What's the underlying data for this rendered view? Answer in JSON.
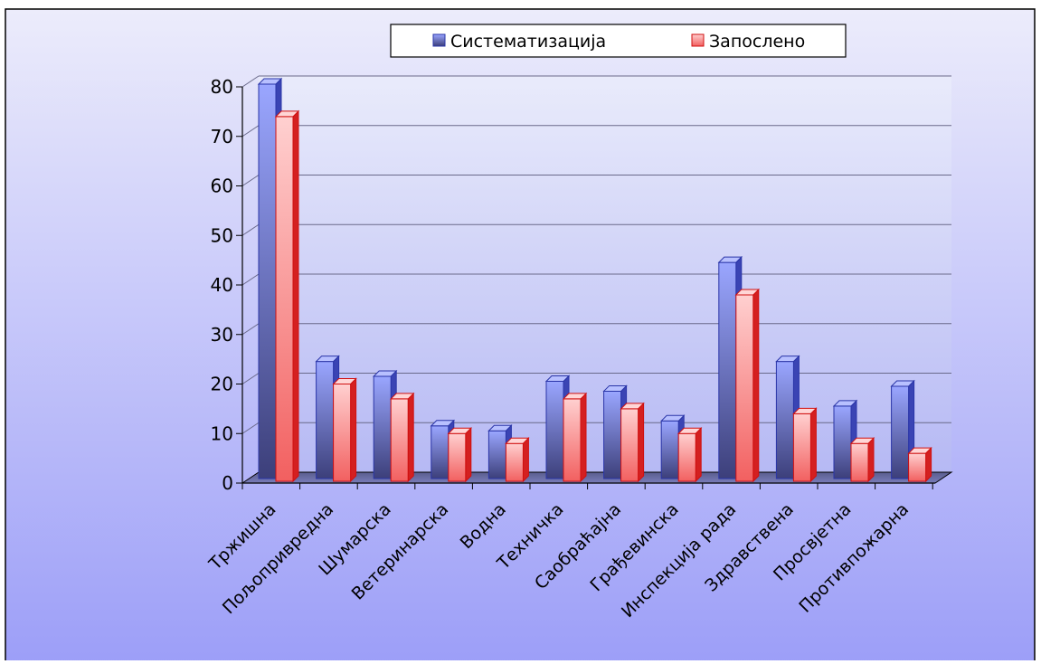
{
  "chart_data": {
    "type": "bar",
    "categories": [
      "Тржишна",
      "Пољопривредна",
      "Шумарска",
      "Ветеринарска",
      "Водна",
      "Техничка",
      "Саобраћајна",
      "Грађевинска",
      "Инспекција рада",
      "Здравствена",
      "Просвјетна",
      "Противпожарна"
    ],
    "series": [
      {
        "name": "Систематизација",
        "values": [
          80,
          24,
          21,
          11,
          10,
          20,
          18,
          12,
          44,
          24,
          15,
          19
        ]
      },
      {
        "name": "Запослено",
        "values": [
          74,
          20,
          17,
          10,
          8,
          17,
          15,
          10,
          38,
          14,
          8,
          6
        ]
      }
    ],
    "ylim": [
      0,
      80
    ],
    "yticks": [
      "0",
      "10",
      "20",
      "30",
      "40",
      "50",
      "60",
      "70",
      "80"
    ],
    "grid": true,
    "legend_position": "top",
    "colors": {
      "series1_light": "#9aa6ff",
      "series1_dark": "#3c3f7a",
      "series1_edge": "#2a35a8",
      "series2_light": "#ffd0d0",
      "series2_dark": "#f26060",
      "series2_edge": "#d01010",
      "background_top": "#ececfb",
      "background_bottom": "#9c9ef8"
    }
  }
}
